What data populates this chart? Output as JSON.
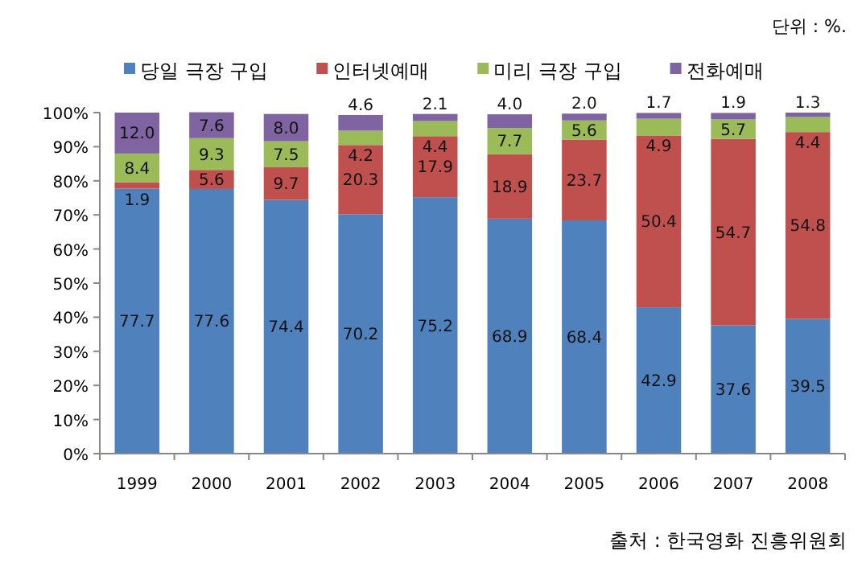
{
  "chart_data": {
    "type": "bar",
    "stacked": true,
    "legend": "top",
    "grid": false,
    "categories": [
      "1999",
      "2000",
      "2001",
      "2002",
      "2003",
      "2004",
      "2005",
      "2006",
      "2007",
      "2008"
    ],
    "series": [
      {
        "name": "당일 극장 구입",
        "color": "#4f81bd",
        "values": [
          77.7,
          77.6,
          74.4,
          70.2,
          75.2,
          68.9,
          68.4,
          42.9,
          37.6,
          39.5
        ],
        "value_labels": [
          "77.7",
          "77.6",
          "74.4",
          "70.2",
          "75.2",
          "68.9",
          "68.4",
          "42.9",
          "37.6",
          "39.5"
        ]
      },
      {
        "name": "인터넷예매",
        "color": "#c0504d",
        "values": [
          1.9,
          5.6,
          9.7,
          20.3,
          17.9,
          18.9,
          23.7,
          50.4,
          54.7,
          54.8
        ],
        "value_labels": [
          "1.9",
          "5.6",
          "9.7",
          "20.3",
          "17.9",
          "18.9",
          "23.7",
          "50.4",
          "54.7",
          "54.8"
        ]
      },
      {
        "name": "미리 극장 구입",
        "color": "#9bbb59",
        "values": [
          8.4,
          9.3,
          7.5,
          4.2,
          4.4,
          7.7,
          5.6,
          4.9,
          5.7,
          4.4
        ],
        "value_labels": [
          "8.4",
          "9.3",
          "7.5",
          "4.2",
          "4.4",
          "7.7",
          "5.6",
          "4.9",
          "5.7",
          "4.4"
        ]
      },
      {
        "name": "전화예매",
        "color": "#8064a2",
        "values": [
          12.0,
          7.6,
          8.0,
          4.6,
          2.1,
          4.0,
          2.0,
          1.7,
          1.9,
          1.3
        ],
        "value_labels": [
          "12.0",
          "7.6",
          "8.0",
          "4.6",
          "2.1",
          "4.0",
          "2.0",
          "1.7",
          "1.9",
          "1.3"
        ]
      }
    ],
    "ylim": [
      0,
      100
    ],
    "yticks": [
      {
        "value": 0,
        "label": "0%"
      },
      {
        "value": 10,
        "label": "10%"
      },
      {
        "value": 20,
        "label": "20%"
      },
      {
        "value": 30,
        "label": "30%"
      },
      {
        "value": 40,
        "label": "40%"
      },
      {
        "value": 50,
        "label": "50%"
      },
      {
        "value": 60,
        "label": "60%"
      },
      {
        "value": 70,
        "label": "70%"
      },
      {
        "value": 80,
        "label": "80%"
      },
      {
        "value": 90,
        "label": "90%"
      },
      {
        "value": 100,
        "label": "100%"
      }
    ],
    "annotations": [
      "단위 : %.",
      "출처 : 한국영화 진흥위원회"
    ]
  }
}
